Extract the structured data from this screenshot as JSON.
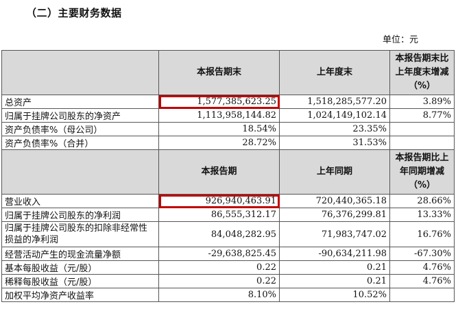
{
  "title": "（二）主要财务数据",
  "unit": "单位：元",
  "table1": {
    "headers": [
      "",
      "本报告期末",
      "上年度末",
      "本报告期末比上年度末增减（%）"
    ],
    "rows": [
      {
        "label": "总资产",
        "cur": "1,577,385,623.25",
        "prev": "1,518,285,577.20",
        "chg": "3.89%"
      },
      {
        "label": "归属于挂牌公司股东的净资产",
        "cur": "1,113,958,144.82",
        "prev": "1,024,149,102.14",
        "chg": "8.77%"
      },
      {
        "label": "资产负债率%（母公司）",
        "cur": "18.54%",
        "prev": "23.35%",
        "chg": ""
      },
      {
        "label": "资产负债率%（合并）",
        "cur": "28.72%",
        "prev": "31.53%",
        "chg": ""
      }
    ]
  },
  "table2": {
    "headers": [
      "",
      "本报告期",
      "上年同期",
      "本报告期比上年同期增减（%）"
    ],
    "rows": [
      {
        "label": "营业收入",
        "cur": "926,940,463.91",
        "prev": "720,440,365.18",
        "chg": "28.66%"
      },
      {
        "label": "归属于挂牌公司股东的净利润",
        "cur": "86,555,312.17",
        "prev": "76,376,299.81",
        "chg": "13.33%"
      },
      {
        "label": "归属于挂牌公司股东的扣除非经常性损益的净利润",
        "cur": "84,048,282.95",
        "prev": "71,983,747.02",
        "chg": "16.76%"
      },
      {
        "label": "经营活动产生的现金流量净额",
        "cur": "-29,638,825.45",
        "prev": "-90,634,211.98",
        "chg": "-67.30%"
      },
      {
        "label": "基本每股收益（元/股）",
        "cur": "0.22",
        "prev": "0.21",
        "chg": "4.76%"
      },
      {
        "label": "稀释每股收益（元/股）",
        "cur": "0.22",
        "prev": "0.21",
        "chg": "4.76%"
      },
      {
        "label": "加权平均净资产收益率",
        "cur": "8.10%",
        "prev": "10.52%",
        "chg": ""
      }
    ]
  }
}
